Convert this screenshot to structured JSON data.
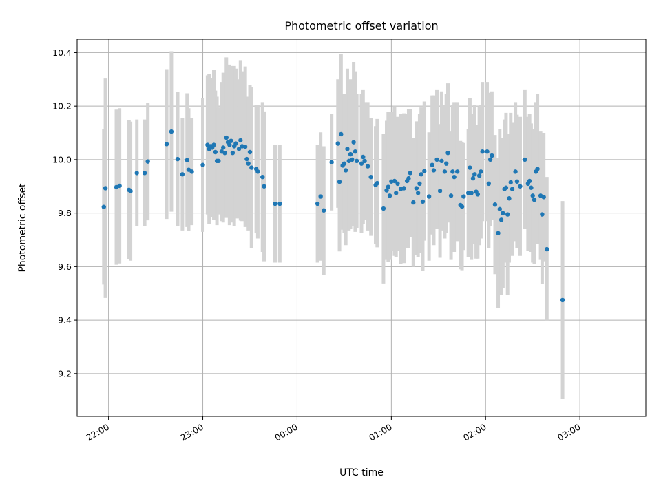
{
  "chart_data": {
    "type": "scatter",
    "title": "Photometric offset variation",
    "xlabel": "UTC time",
    "ylabel": "Photometric offset",
    "xlim": [
      "21:40",
      "03:42"
    ],
    "ylim": [
      9.04,
      10.45
    ],
    "grid": true,
    "colors": {
      "points": "#1f77b4",
      "errorbars": "#d3d3d3",
      "grid": "#b0b0b0"
    },
    "x_ticks": [
      "22:00",
      "23:00",
      "00:00",
      "01:00",
      "02:00",
      "03:00"
    ],
    "y_ticks": [
      "9.2",
      "9.4",
      "9.6",
      "9.8",
      "10.0",
      "10.2",
      "10.4"
    ],
    "series": [
      {
        "marker": "dot",
        "points": [
          [
            "21:57",
            9.823,
            0.29
          ],
          [
            "21:58",
            9.893,
            0.41
          ],
          [
            "22:05",
            9.897,
            0.29
          ],
          [
            "22:07",
            9.902,
            0.29
          ],
          [
            "22:13",
            9.887,
            0.26
          ],
          [
            "22:14",
            9.882,
            0.26
          ],
          [
            "22:18",
            9.95,
            0.2
          ],
          [
            "22:23",
            9.95,
            0.2
          ],
          [
            "22:25",
            9.993,
            0.22
          ],
          [
            "22:37",
            10.058,
            0.28
          ],
          [
            "22:40",
            10.105,
            0.3
          ],
          [
            "22:44",
            10.002,
            0.25
          ],
          [
            "22:47",
            9.945,
            0.21
          ],
          [
            "22:50",
            9.998,
            0.25
          ],
          [
            "22:51",
            9.962,
            0.23
          ],
          [
            "22:53",
            9.955,
            0.2
          ],
          [
            "23:00",
            9.98,
            0.25
          ],
          [
            "23:03",
            10.055,
            0.26
          ],
          [
            "23:04",
            10.04,
            0.28
          ],
          [
            "23:05",
            10.05,
            0.25
          ],
          [
            "23:06",
            10.045,
            0.26
          ],
          [
            "23:07",
            10.055,
            0.28
          ],
          [
            "23:08",
            10.028,
            0.23
          ],
          [
            "23:09",
            9.995,
            0.24
          ],
          [
            "23:10",
            9.995,
            0.2
          ],
          [
            "23:12",
            10.03,
            0.26
          ],
          [
            "23:13",
            10.045,
            0.28
          ],
          [
            "23:14",
            10.025,
            0.24
          ],
          [
            "23:15",
            10.082,
            0.3
          ],
          [
            "23:16",
            10.065,
            0.28
          ],
          [
            "23:17",
            10.055,
            0.3
          ],
          [
            "23:18",
            10.07,
            0.28
          ],
          [
            "23:19",
            10.025,
            0.26
          ],
          [
            "23:20",
            10.05,
            0.3
          ],
          [
            "23:21",
            10.06,
            0.28
          ],
          [
            "23:23",
            10.04,
            0.26
          ],
          [
            "23:24",
            10.072,
            0.3
          ],
          [
            "23:25",
            10.05,
            0.28
          ],
          [
            "23:27",
            10.048,
            0.3
          ],
          [
            "23:28",
            10.002,
            0.22
          ],
          [
            "23:29",
            9.985,
            0.25
          ],
          [
            "23:30",
            10.028,
            0.25
          ],
          [
            "23:31",
            9.97,
            0.3
          ],
          [
            "23:34",
            9.965,
            0.24
          ],
          [
            "23:35",
            9.955,
            0.25
          ],
          [
            "23:38",
            9.935,
            0.28
          ],
          [
            "23:39",
            9.9,
            0.28
          ],
          [
            "23:46",
            9.835,
            0.22
          ],
          [
            "23:49",
            9.835,
            0.22
          ],
          [
            "00:13",
            9.835,
            0.22
          ],
          [
            "00:15",
            9.862,
            0.24
          ],
          [
            "00:17",
            9.81,
            0.24
          ],
          [
            "00:22",
            9.99,
            0.18
          ],
          [
            "00:26",
            10.06,
            0.24
          ],
          [
            "00:27",
            9.917,
            0.26
          ],
          [
            "00:28",
            10.095,
            0.3
          ],
          [
            "00:29",
            9.978,
            0.24
          ],
          [
            "00:30",
            9.985,
            0.26
          ],
          [
            "00:31",
            9.96,
            0.28
          ],
          [
            "00:32",
            10.04,
            0.3
          ],
          [
            "00:33",
            9.995,
            0.26
          ],
          [
            "00:34",
            10.02,
            0.28
          ],
          [
            "00:35",
            10.0,
            0.25
          ],
          [
            "00:36",
            10.065,
            0.3
          ],
          [
            "00:37",
            10.03,
            0.3
          ],
          [
            "00:38",
            9.995,
            0.25
          ],
          [
            "00:41",
            9.985,
            0.26
          ],
          [
            "00:42",
            10.01,
            0.25
          ],
          [
            "00:43",
            9.995,
            0.22
          ],
          [
            "00:45",
            9.975,
            0.24
          ],
          [
            "00:47",
            9.935,
            0.22
          ],
          [
            "00:50",
            9.905,
            0.22
          ],
          [
            "00:51",
            9.912,
            0.24
          ],
          [
            "00:55",
            9.817,
            0.28
          ],
          [
            "00:57",
            9.885,
            0.26
          ],
          [
            "00:58",
            9.898,
            0.28
          ],
          [
            "00:59",
            9.865,
            0.24
          ],
          [
            "01:00",
            9.918,
            0.26
          ],
          [
            "01:02",
            9.92,
            0.28
          ],
          [
            "01:03",
            9.875,
            0.24
          ],
          [
            "01:04",
            9.91,
            0.25
          ],
          [
            "01:06",
            9.89,
            0.28
          ],
          [
            "01:08",
            9.893,
            0.28
          ],
          [
            "01:10",
            9.92,
            0.25
          ],
          [
            "01:11",
            9.93,
            0.26
          ],
          [
            "01:12",
            9.95,
            0.24
          ],
          [
            "01:14",
            9.84,
            0.24
          ],
          [
            "01:16",
            9.893,
            0.25
          ],
          [
            "01:17",
            9.875,
            0.24
          ],
          [
            "01:18",
            9.91,
            0.26
          ],
          [
            "01:19",
            9.945,
            0.25
          ],
          [
            "01:20",
            9.843,
            0.26
          ],
          [
            "01:21",
            9.957,
            0.26
          ],
          [
            "01:24",
            9.862,
            0.24
          ],
          [
            "01:26",
            9.98,
            0.26
          ],
          [
            "01:27",
            9.96,
            0.28
          ],
          [
            "01:29",
            10.0,
            0.26
          ],
          [
            "01:31",
            9.883,
            0.25
          ],
          [
            "01:32",
            9.995,
            0.26
          ],
          [
            "01:34",
            9.955,
            0.25
          ],
          [
            "01:35",
            9.985,
            0.26
          ],
          [
            "01:36",
            10.025,
            0.26
          ],
          [
            "01:38",
            9.865,
            0.24
          ],
          [
            "01:39",
            9.955,
            0.25
          ],
          [
            "01:40",
            9.935,
            0.28
          ],
          [
            "01:42",
            9.955,
            0.26
          ],
          [
            "01:44",
            9.83,
            0.24
          ],
          [
            "01:45",
            9.824,
            0.24
          ],
          [
            "01:46",
            9.862,
            0.2
          ],
          [
            "01:49",
            9.875,
            0.24
          ],
          [
            "01:50",
            9.97,
            0.26
          ],
          [
            "01:51",
            9.875,
            0.25
          ],
          [
            "01:52",
            9.93,
            0.24
          ],
          [
            "01:53",
            9.945,
            0.26
          ],
          [
            "01:54",
            9.88,
            0.25
          ],
          [
            "01:55",
            9.87,
            0.24
          ],
          [
            "01:56",
            9.94,
            0.26
          ],
          [
            "01:57",
            9.955,
            0.25
          ],
          [
            "01:58",
            10.03,
            0.26
          ],
          [
            "02:01",
            10.03,
            0.26
          ],
          [
            "02:02",
            9.91,
            0.24
          ],
          [
            "02:03",
            10.0,
            0.25
          ],
          [
            "02:04",
            10.015,
            0.24
          ],
          [
            "02:06",
            9.832,
            0.26
          ],
          [
            "02:08",
            9.725,
            0.28
          ],
          [
            "02:09",
            9.815,
            0.3
          ],
          [
            "02:10",
            9.775,
            0.28
          ],
          [
            "02:11",
            9.8,
            0.28
          ],
          [
            "02:12",
            9.89,
            0.26
          ],
          [
            "02:13",
            9.895,
            0.28
          ],
          [
            "02:14",
            9.795,
            0.3
          ],
          [
            "02:15",
            9.855,
            0.24
          ],
          [
            "02:16",
            9.915,
            0.26
          ],
          [
            "02:17",
            9.89,
            0.25
          ],
          [
            "02:19",
            9.955,
            0.26
          ],
          [
            "02:20",
            9.918,
            0.25
          ],
          [
            "02:22",
            9.9,
            0.26
          ],
          [
            "02:25",
            10.0,
            0.26
          ],
          [
            "02:27",
            9.91,
            0.25
          ],
          [
            "02:28",
            9.92,
            0.25
          ],
          [
            "02:29",
            9.895,
            0.24
          ],
          [
            "02:30",
            9.865,
            0.25
          ],
          [
            "02:31",
            9.85,
            0.24
          ],
          [
            "02:32",
            9.955,
            0.26
          ],
          [
            "02:33",
            9.965,
            0.28
          ],
          [
            "02:35",
            9.865,
            0.24
          ],
          [
            "02:36",
            9.795,
            0.26
          ],
          [
            "02:37",
            9.86,
            0.24
          ],
          [
            "02:39",
            9.665,
            0.27
          ],
          [
            "02:49",
            9.475,
            0.37
          ]
        ]
      }
    ]
  }
}
